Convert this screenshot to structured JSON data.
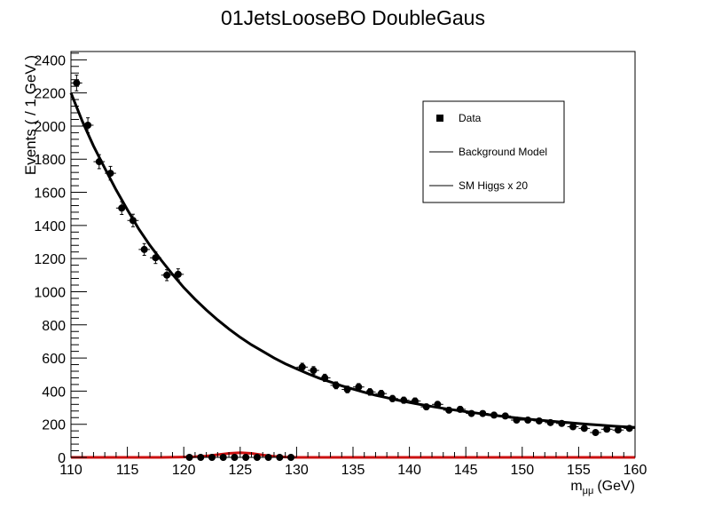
{
  "chart_data": {
    "type": "scatter",
    "title": "01JetsLooseBO DoubleGaus",
    "xlabel_main": "m",
    "xlabel_sub": "μμ",
    "xlabel_unit": "(GeV)",
    "ylabel": "Events ( / 1 GeV )",
    "xlim": [
      110,
      160
    ],
    "ylim": [
      0,
      2450
    ],
    "xticks": [
      110,
      115,
      120,
      125,
      130,
      135,
      140,
      145,
      150,
      155,
      160
    ],
    "yticks": [
      0,
      200,
      400,
      600,
      800,
      1000,
      1200,
      1400,
      1600,
      1800,
      2000,
      2200,
      2400
    ],
    "legend_position": "top-right",
    "legend": [
      {
        "label": "Data",
        "style": "marker"
      },
      {
        "label": "Background Model",
        "style": "line"
      },
      {
        "label": "SM Higgs x 20",
        "style": "line"
      }
    ],
    "series": [
      {
        "name": "Data",
        "x": [
          110.5,
          111.5,
          112.5,
          113.5,
          114.5,
          115.5,
          116.5,
          117.5,
          118.5,
          119.5,
          120.5,
          121.5,
          122.5,
          123.5,
          124.5,
          125.5,
          126.5,
          127.5,
          128.5,
          129.5,
          130.5,
          131.5,
          132.5,
          133.5,
          134.5,
          135.5,
          136.5,
          137.5,
          138.5,
          139.5,
          140.5,
          141.5,
          142.5,
          143.5,
          144.5,
          145.5,
          146.5,
          147.5,
          148.5,
          149.5,
          150.5,
          151.5,
          152.5,
          153.5,
          154.5,
          155.5,
          156.5,
          157.5,
          158.5,
          159.5
        ],
        "y": [
          2260,
          2005,
          1785,
          1715,
          1505,
          1430,
          1255,
          1205,
          1100,
          1105,
          0,
          0,
          0,
          0,
          0,
          0,
          0,
          0,
          0,
          0,
          545,
          525,
          480,
          435,
          410,
          425,
          395,
          385,
          355,
          345,
          340,
          305,
          320,
          285,
          290,
          265,
          265,
          255,
          250,
          225,
          225,
          220,
          210,
          205,
          185,
          175,
          150,
          170,
          165,
          175
        ]
      },
      {
        "name": "Background Model",
        "x": [
          110,
          111,
          112,
          113,
          114,
          115,
          116,
          117,
          118,
          119,
          120,
          121,
          122,
          123,
          124,
          125,
          126,
          127,
          128,
          129,
          130,
          131,
          132,
          133,
          134,
          135,
          136,
          137,
          138,
          139,
          140,
          141,
          142,
          143,
          144,
          145,
          146,
          147,
          148,
          149,
          150,
          151,
          152,
          153,
          154,
          155,
          156,
          157,
          158,
          159,
          160
        ],
        "y": [
          2200,
          2030,
          1880,
          1745,
          1615,
          1495,
          1380,
          1280,
          1190,
          1105,
          1025,
          955,
          890,
          830,
          775,
          725,
          680,
          640,
          600,
          565,
          535,
          505,
          478,
          455,
          432,
          412,
          393,
          375,
          360,
          345,
          332,
          319,
          307,
          296,
          286,
          276,
          267,
          258,
          250,
          242,
          235,
          228,
          222,
          216,
          210,
          204,
          199,
          194,
          189,
          185,
          181
        ]
      },
      {
        "name": "SM Higgs x 20",
        "x": [
          110,
          118,
          120,
          121,
          122,
          123,
          124,
          125,
          126,
          127,
          128,
          129,
          130,
          132,
          140,
          150,
          160
        ],
        "y": [
          0,
          0,
          2,
          4,
          8,
          16,
          24,
          28,
          24,
          14,
          6,
          2,
          0,
          0,
          0,
          0,
          0
        ]
      }
    ]
  }
}
